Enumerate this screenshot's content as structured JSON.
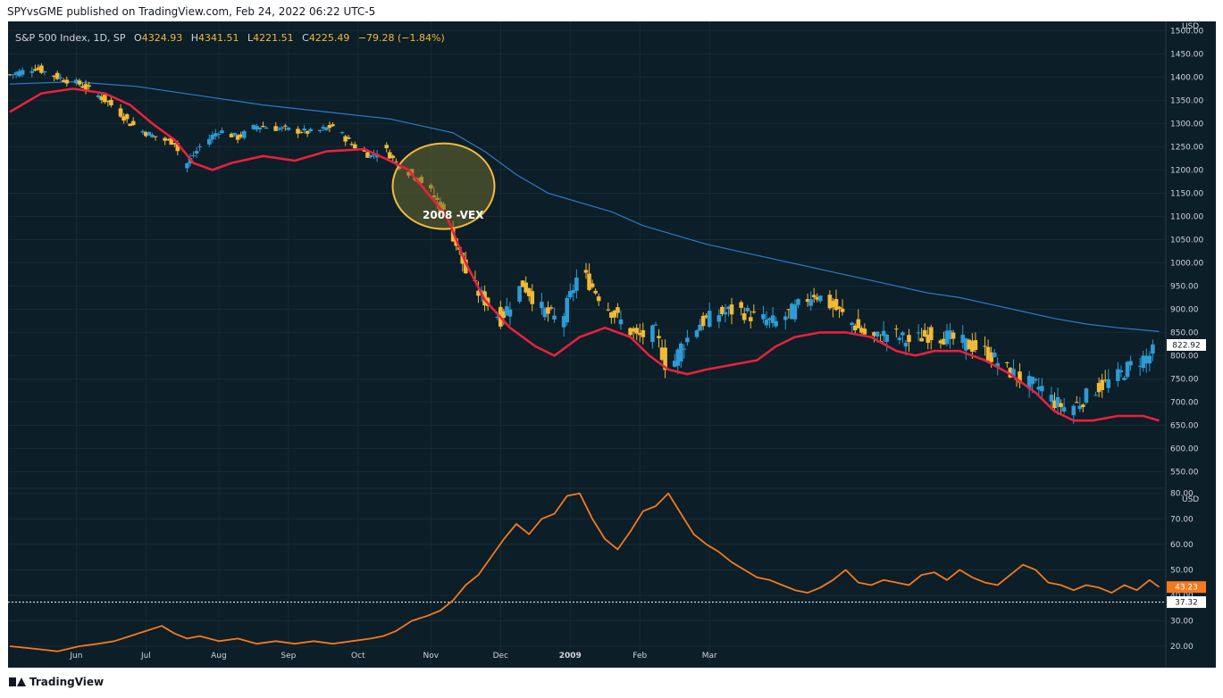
{
  "header": {
    "published": "SPYvsGME published on TradingView.com, Feb 24, 2022 06:22 UTC-5"
  },
  "legend": {
    "symbol": "S&P 500 Index, 1D, SP",
    "o_label": "O",
    "o_value": "4324.93",
    "h_label": "H",
    "h_value": "4341.51",
    "l_label": "L",
    "l_value": "4221.51",
    "c_label": "C",
    "c_value": "4225.49",
    "change": "−79.28 (−1.84%)"
  },
  "footer": {
    "brand": "TradingView"
  },
  "annotation": {
    "text": "2008 -VEX"
  },
  "colors": {
    "background": "#0c1e28",
    "candle_up": "#2f9bd5",
    "candle_down": "#f0b93a",
    "ema_line": "#e8213d",
    "sma_line": "#2f79c8",
    "vix_line": "#f5791f",
    "highlight_fill": "#6b6b30",
    "highlight_stroke": "#f5b93d",
    "axis_text": "#d1d4dc"
  },
  "chart_data": [
    {
      "type": "candlestick",
      "title": "S&P 500 Index, 1D, SP",
      "unit": "USD",
      "ylim": [
        520,
        1520
      ],
      "y_ticks": [
        550,
        600,
        650,
        700,
        750,
        800,
        850,
        900,
        950,
        1000,
        1050,
        1100,
        1150,
        1200,
        1250,
        1300,
        1350,
        1400,
        1450,
        1500
      ],
      "x_ticks": [
        "Jun",
        "Jul",
        "Aug",
        "Sep",
        "Oct",
        "Nov",
        "Dec",
        "2009",
        "Feb",
        "Mar"
      ],
      "last_price_label": "822.92",
      "close_path": [
        [
          0,
          1405
        ],
        [
          8,
          1420
        ],
        [
          15,
          1400
        ],
        [
          22,
          1385
        ],
        [
          28,
          1360
        ],
        [
          33,
          1335
        ],
        [
          38,
          1300
        ],
        [
          43,
          1280
        ],
        [
          48,
          1265
        ],
        [
          52,
          1260
        ],
        [
          55,
          1205
        ],
        [
          60,
          1250
        ],
        [
          66,
          1285
        ],
        [
          72,
          1270
        ],
        [
          78,
          1295
        ],
        [
          84,
          1290
        ],
        [
          90,
          1285
        ],
        [
          96,
          1280
        ],
        [
          102,
          1295
        ],
        [
          108,
          1255
        ],
        [
          114,
          1230
        ],
        [
          118,
          1250
        ],
        [
          122,
          1215
        ],
        [
          127,
          1190
        ],
        [
          132,
          1165
        ],
        [
          136,
          1120
        ],
        [
          140,
          1060
        ],
        [
          145,
          960
        ],
        [
          150,
          920
        ],
        [
          155,
          880
        ],
        [
          162,
          955
        ],
        [
          168,
          900
        ],
        [
          174,
          870
        ],
        [
          180,
          985
        ],
        [
          186,
          930
        ],
        [
          192,
          880
        ],
        [
          198,
          840
        ],
        [
          204,
          850
        ],
        [
          208,
          760
        ],
        [
          212,
          820
        ],
        [
          218,
          870
        ],
        [
          224,
          890
        ],
        [
          230,
          900
        ],
        [
          236,
          880
        ],
        [
          242,
          870
        ],
        [
          248,
          900
        ],
        [
          254,
          935
        ],
        [
          260,
          905
        ],
        [
          266,
          870
        ],
        [
          272,
          835
        ],
        [
          278,
          850
        ],
        [
          284,
          830
        ],
        [
          290,
          845
        ],
        [
          296,
          840
        ],
        [
          302,
          825
        ],
        [
          308,
          810
        ],
        [
          314,
          775
        ],
        [
          320,
          745
        ],
        [
          326,
          730
        ],
        [
          330,
          700
        ],
        [
          334,
          685
        ],
        [
          338,
          700
        ],
        [
          342,
          725
        ],
        [
          346,
          740
        ],
        [
          350,
          755
        ],
        [
          355,
          785
        ],
        [
          360,
          800
        ],
        [
          363,
          822.92
        ]
      ],
      "series": [
        {
          "name": "",
          "values": [
            [
              0,
              1325
            ],
            [
              10,
              1365
            ],
            [
              20,
              1375
            ],
            [
              30,
              1365
            ],
            [
              38,
              1340
            ],
            [
              45,
              1300
            ],
            [
              52,
              1265
            ],
            [
              58,
              1215
            ],
            [
              64,
              1200
            ],
            [
              70,
              1215
            ],
            [
              80,
              1230
            ],
            [
              90,
              1220
            ],
            [
              100,
              1240
            ],
            [
              112,
              1245
            ],
            [
              120,
              1220
            ],
            [
              126,
              1200
            ],
            [
              132,
              1150
            ],
            [
              138,
              1100
            ],
            [
              144,
              1000
            ],
            [
              150,
              920
            ],
            [
              158,
              860
            ],
            [
              166,
              820
            ],
            [
              172,
              800
            ],
            [
              180,
              840
            ],
            [
              188,
              860
            ],
            [
              196,
              840
            ],
            [
              202,
              800
            ],
            [
              208,
              770
            ],
            [
              214,
              760
            ],
            [
              220,
              770
            ],
            [
              228,
              780
            ],
            [
              236,
              790
            ],
            [
              242,
              820
            ],
            [
              248,
              840
            ],
            [
              256,
              850
            ],
            [
              264,
              850
            ],
            [
              272,
              840
            ],
            [
              280,
              810
            ],
            [
              286,
              800
            ],
            [
              292,
              810
            ],
            [
              300,
              810
            ],
            [
              308,
              790
            ],
            [
              316,
              760
            ],
            [
              324,
              720
            ],
            [
              330,
              680
            ],
            [
              336,
              660
            ],
            [
              342,
              660
            ],
            [
              350,
              670
            ],
            [
              358,
              670
            ],
            [
              363,
              660
            ]
          ]
        },
        {
          "name": "",
          "values": [
            [
              0,
              1385
            ],
            [
              20,
              1390
            ],
            [
              40,
              1380
            ],
            [
              60,
              1360
            ],
            [
              80,
              1340
            ],
            [
              100,
              1325
            ],
            [
              120,
              1310
            ],
            [
              140,
              1280
            ],
            [
              150,
              1240
            ],
            [
              160,
              1190
            ],
            [
              170,
              1150
            ],
            [
              180,
              1130
            ],
            [
              190,
              1110
            ],
            [
              200,
              1080
            ],
            [
              210,
              1060
            ],
            [
              220,
              1040
            ],
            [
              230,
              1025
            ],
            [
              240,
              1010
            ],
            [
              250,
              995
            ],
            [
              260,
              980
            ],
            [
              270,
              965
            ],
            [
              280,
              950
            ],
            [
              290,
              935
            ],
            [
              300,
              925
            ],
            [
              310,
              910
            ],
            [
              320,
              895
            ],
            [
              330,
              880
            ],
            [
              340,
              868
            ],
            [
              350,
              860
            ],
            [
              363,
              852
            ]
          ]
        }
      ]
    },
    {
      "type": "line",
      "title": "",
      "unit": "USD",
      "ylim": [
        13,
        82
      ],
      "y_ticks": [
        20,
        30,
        40,
        50,
        60,
        70,
        80
      ],
      "current_value_label": "43.23",
      "reference_value_label": "37.32",
      "reference_value": 37.32,
      "series": [
        {
          "name": "",
          "values": [
            [
              0,
              20
            ],
            [
              8,
              19
            ],
            [
              15,
              18
            ],
            [
              22,
              20
            ],
            [
              28,
              21
            ],
            [
              33,
              22
            ],
            [
              38,
              24
            ],
            [
              43,
              26
            ],
            [
              48,
              28
            ],
            [
              52,
              25
            ],
            [
              56,
              23
            ],
            [
              60,
              24
            ],
            [
              66,
              22
            ],
            [
              72,
              23
            ],
            [
              78,
              21
            ],
            [
              84,
              22
            ],
            [
              90,
              21
            ],
            [
              96,
              22
            ],
            [
              102,
              21
            ],
            [
              108,
              22
            ],
            [
              114,
              23
            ],
            [
              118,
              24
            ],
            [
              122,
              26
            ],
            [
              127,
              30
            ],
            [
              132,
              32
            ],
            [
              136,
              34
            ],
            [
              140,
              38
            ],
            [
              144,
              44
            ],
            [
              148,
              48
            ],
            [
              152,
              55
            ],
            [
              156,
              62
            ],
            [
              160,
              68
            ],
            [
              164,
              64
            ],
            [
              168,
              70
            ],
            [
              172,
              72
            ],
            [
              176,
              79
            ],
            [
              180,
              80
            ],
            [
              184,
              70
            ],
            [
              188,
              62
            ],
            [
              192,
              58
            ],
            [
              196,
              65
            ],
            [
              200,
              73
            ],
            [
              204,
              75
            ],
            [
              208,
              80
            ],
            [
              212,
              72
            ],
            [
              216,
              64
            ],
            [
              220,
              60
            ],
            [
              224,
              57
            ],
            [
              228,
              53
            ],
            [
              232,
              50
            ],
            [
              236,
              47
            ],
            [
              240,
              46
            ],
            [
              244,
              44
            ],
            [
              248,
              42
            ],
            [
              252,
              41
            ],
            [
              256,
              43
            ],
            [
              260,
              46
            ],
            [
              264,
              50
            ],
            [
              268,
              45
            ],
            [
              272,
              44
            ],
            [
              276,
              46
            ],
            [
              280,
              45
            ],
            [
              284,
              44
            ],
            [
              288,
              48
            ],
            [
              292,
              49
            ],
            [
              296,
              46
            ],
            [
              300,
              50
            ],
            [
              304,
              47
            ],
            [
              308,
              45
            ],
            [
              312,
              44
            ],
            [
              316,
              48
            ],
            [
              320,
              52
            ],
            [
              324,
              50
            ],
            [
              328,
              45
            ],
            [
              332,
              44
            ],
            [
              336,
              42
            ],
            [
              340,
              44
            ],
            [
              344,
              43
            ],
            [
              348,
              41
            ],
            [
              352,
              44
            ],
            [
              356,
              42
            ],
            [
              360,
              46
            ],
            [
              363,
              43.23
            ]
          ]
        }
      ]
    }
  ]
}
